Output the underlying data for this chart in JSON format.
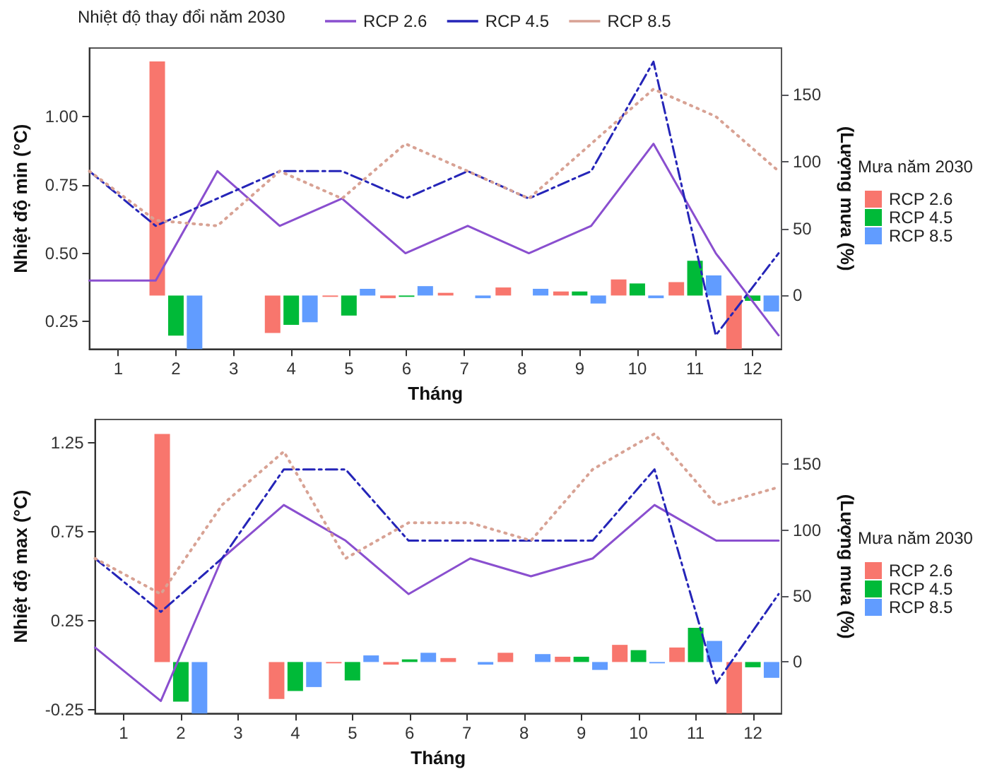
{
  "chart_data": [
    {
      "type": "bar",
      "x": [
        1,
        2,
        3,
        4,
        5,
        6,
        7,
        8,
        9,
        10,
        11,
        12
      ],
      "xlabel": "Tháng",
      "ylabel": "Nhiệt độ min (°C)",
      "y2label": "(Lượng mưa (%)",
      "legend_title": "Nhiệt độ thay đổi năm 2030",
      "annotations": [
        "Mưa năm 2030"
      ],
      "legend": "top",
      "grid": false,
      "marker": "none",
      "xlim": [
        0.5,
        12.5
      ],
      "xticks": [
        1,
        2,
        3,
        4,
        5,
        6,
        7,
        8,
        9,
        10,
        11,
        12
      ],
      "ylim": [
        0.15,
        1.25
      ],
      "yticks": [
        {
          "value": 0.25,
          "label": "0.25"
        },
        {
          "value": 0.5,
          "label": "0.50"
        },
        {
          "value": 0.75,
          "label": "0.75"
        },
        {
          "value": 1,
          "label": "1.00"
        }
      ],
      "y2lim": [
        -40,
        185
      ],
      "y2ticks": [
        0,
        50,
        100,
        150
      ],
      "series": [
        {
          "name": "RCP 2.6",
          "axis": "y2",
          "color": "#f8766d",
          "values": [
            0,
            175,
            0,
            -28,
            -1,
            -2,
            2,
            6,
            3,
            12,
            10,
            -40
          ]
        },
        {
          "name": "RCP 4.5",
          "axis": "y2",
          "color": "#00ba38",
          "values": [
            0,
            -30,
            0,
            -22,
            -15,
            -1,
            0,
            0,
            3,
            9,
            26,
            -4
          ]
        },
        {
          "name": "RCP 8.5",
          "axis": "y2",
          "color": "#619cff",
          "values": [
            0,
            -40,
            0,
            -20,
            5,
            7,
            -2,
            5,
            -6,
            -2,
            15,
            -12
          ]
        },
        {
          "name": "RCP 2.6",
          "type": "line",
          "line_style": "solid",
          "color": "#8a4fcf",
          "x": [
            0.5,
            1.65,
            2.72,
            3.8,
            4.88,
            5.98,
            7.06,
            8.12,
            9.2,
            10.28,
            11.36,
            12.45
          ],
          "values": [
            0.4,
            0.4,
            0.8,
            0.6,
            0.7,
            0.5,
            0.6,
            0.5,
            0.6,
            0.9,
            0.5,
            0.2
          ]
        },
        {
          "name": "RCP 4.5",
          "type": "line",
          "line_style": "dashed",
          "color": "#2525b8",
          "x": [
            0.5,
            1.65,
            2.72,
            3.8,
            4.88,
            5.98,
            7.06,
            8.12,
            9.2,
            10.28,
            11.36,
            12.45
          ],
          "values": [
            0.8,
            0.6,
            0.7,
            0.8,
            0.8,
            0.7,
            0.8,
            0.7,
            0.8,
            1.2,
            0.2,
            0.5
          ]
        },
        {
          "name": "RCP 8.5",
          "type": "line",
          "line_style": "dotted",
          "color": "#d8a294",
          "x": [
            0.5,
            1.65,
            2.72,
            3.8,
            4.88,
            5.98,
            7.06,
            8.12,
            9.2,
            10.28,
            11.36,
            12.45
          ],
          "values": [
            0.8,
            0.62,
            0.6,
            0.8,
            0.7,
            0.9,
            0.8,
            0.7,
            0.9,
            1.1,
            1.0,
            0.8
          ]
        }
      ]
    },
    {
      "type": "bar",
      "x": [
        1,
        2,
        3,
        4,
        5,
        6,
        7,
        8,
        9,
        10,
        11,
        12
      ],
      "xlabel": "Tháng",
      "ylabel": "Nhiệt độ max (°C)",
      "y2label": "(Lượng mưa (%)",
      "legend_title": "Mưa năm 2030",
      "legend": "right",
      "grid": false,
      "marker": "none",
      "xlim": [
        0.5,
        12.5
      ],
      "xticks": [
        1,
        2,
        3,
        4,
        5,
        6,
        7,
        8,
        9,
        10,
        11,
        12
      ],
      "ylim": [
        -0.27,
        1.38
      ],
      "yticks": [
        -0.25,
        0.25,
        0.75,
        1.25
      ],
      "y2lim": [
        -39,
        184
      ],
      "y2ticks": [
        0,
        50,
        100,
        150
      ],
      "series": [
        {
          "name": "RCP 2.6",
          "axis": "y2",
          "color": "#f8766d",
          "values": [
            0,
            173,
            0,
            -28,
            -1,
            -2,
            3,
            7,
            4,
            13,
            11,
            -39
          ]
        },
        {
          "name": "RCP 4.5",
          "axis": "y2",
          "color": "#00ba38",
          "values": [
            0,
            -30,
            0,
            -22,
            -14,
            2,
            0,
            0,
            4,
            9,
            26,
            -4
          ]
        },
        {
          "name": "RCP 8.5",
          "axis": "y2",
          "color": "#619cff",
          "values": [
            0,
            -39,
            0,
            -19,
            5,
            7,
            -2,
            6,
            -6,
            -1,
            16,
            -12
          ]
        },
        {
          "type": "line",
          "line_style": "solid",
          "color": "#8a4fcf",
          "x": [
            0.5,
            1.65,
            2.72,
            3.8,
            4.88,
            5.98,
            7.06,
            8.12,
            9.2,
            10.28,
            11.36,
            12.45
          ],
          "values": [
            0.1,
            -0.2,
            0.6,
            0.9,
            0.7,
            0.4,
            0.6,
            0.5,
            0.6,
            0.9,
            0.7,
            0.7
          ]
        },
        {
          "type": "line",
          "line_style": "dashed",
          "color": "#2525b8",
          "x": [
            0.5,
            1.65,
            2.72,
            3.8,
            4.88,
            5.98,
            7.06,
            8.12,
            9.2,
            10.28,
            11.36,
            12.45
          ],
          "values": [
            0.6,
            0.3,
            0.6,
            1.1,
            1.1,
            0.7,
            0.7,
            0.7,
            0.7,
            1.1,
            -0.1,
            0.4
          ]
        },
        {
          "type": "line",
          "line_style": "dotted",
          "color": "#d8a294",
          "x": [
            0.5,
            1.65,
            2.72,
            3.8,
            4.88,
            5.98,
            7.06,
            8.12,
            9.2,
            10.28,
            11.36,
            12.45
          ],
          "values": [
            0.6,
            0.4,
            0.9,
            1.2,
            0.6,
            0.8,
            0.8,
            0.7,
            1.1,
            1.3,
            0.9,
            1.0
          ]
        }
      ]
    }
  ]
}
